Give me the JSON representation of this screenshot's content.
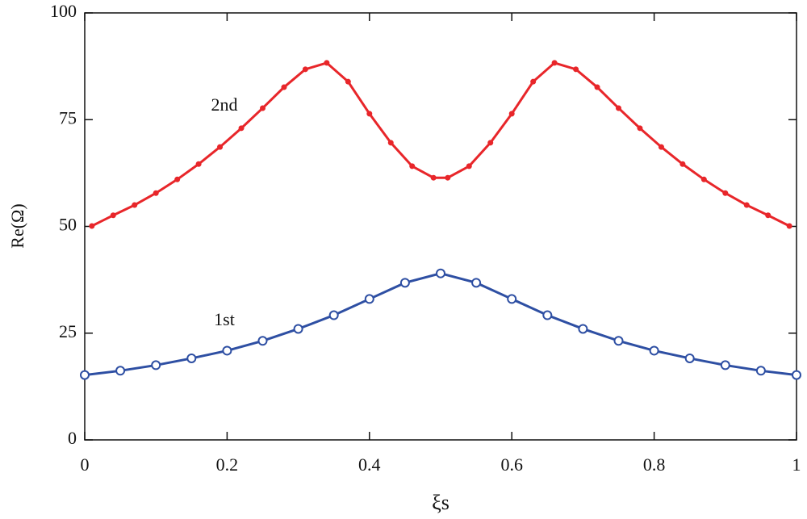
{
  "chart_data": {
    "type": "line",
    "xlabel": "ξs",
    "ylabel": "Re(Ω)",
    "xlim": [
      0,
      1
    ],
    "ylim": [
      0,
      100
    ],
    "xticks": [
      0,
      0.2,
      0.4,
      0.6,
      0.8,
      1
    ],
    "yticks": [
      0,
      25,
      50,
      75,
      100
    ],
    "annotations": [
      "2nd",
      "1st"
    ],
    "series": [
      {
        "name": "2nd",
        "color": "#e8262a",
        "marker": "dot",
        "x": [
          0.01,
          0.04,
          0.07,
          0.1,
          0.13,
          0.16,
          0.19,
          0.22,
          0.25,
          0.28,
          0.31,
          0.34,
          0.37,
          0.4,
          0.43,
          0.46,
          0.49,
          0.51,
          0.54,
          0.57,
          0.6,
          0.63,
          0.66,
          0.69,
          0.72,
          0.75,
          0.78,
          0.81,
          0.84,
          0.87,
          0.9,
          0.93,
          0.96,
          0.99
        ],
        "values": [
          50.1,
          52.6,
          55,
          57.8,
          61,
          64.6,
          68.6,
          73,
          77.7,
          82.6,
          86.8,
          88.3,
          83.9,
          76.4,
          69.6,
          64.1,
          61.4,
          61.4,
          64.1,
          69.6,
          76.4,
          83.9,
          88.3,
          86.8,
          82.6,
          77.7,
          73,
          68.6,
          64.6,
          61,
          57.8,
          55,
          52.6,
          50.1
        ]
      },
      {
        "name": "1st",
        "color": "#2e4fa3",
        "marker": "open-circle",
        "x": [
          0,
          0.05,
          0.1,
          0.15,
          0.2,
          0.25,
          0.3,
          0.35,
          0.4,
          0.45,
          0.5,
          0.55,
          0.6,
          0.65,
          0.7,
          0.75,
          0.8,
          0.85,
          0.9,
          0.95,
          1
        ],
        "values": [
          15.2,
          16.2,
          17.5,
          19.1,
          20.9,
          23.2,
          26,
          29.2,
          33,
          36.8,
          39,
          36.8,
          33,
          29.2,
          26,
          23.2,
          20.9,
          19.1,
          17.5,
          16.2,
          15.2
        ]
      }
    ]
  }
}
